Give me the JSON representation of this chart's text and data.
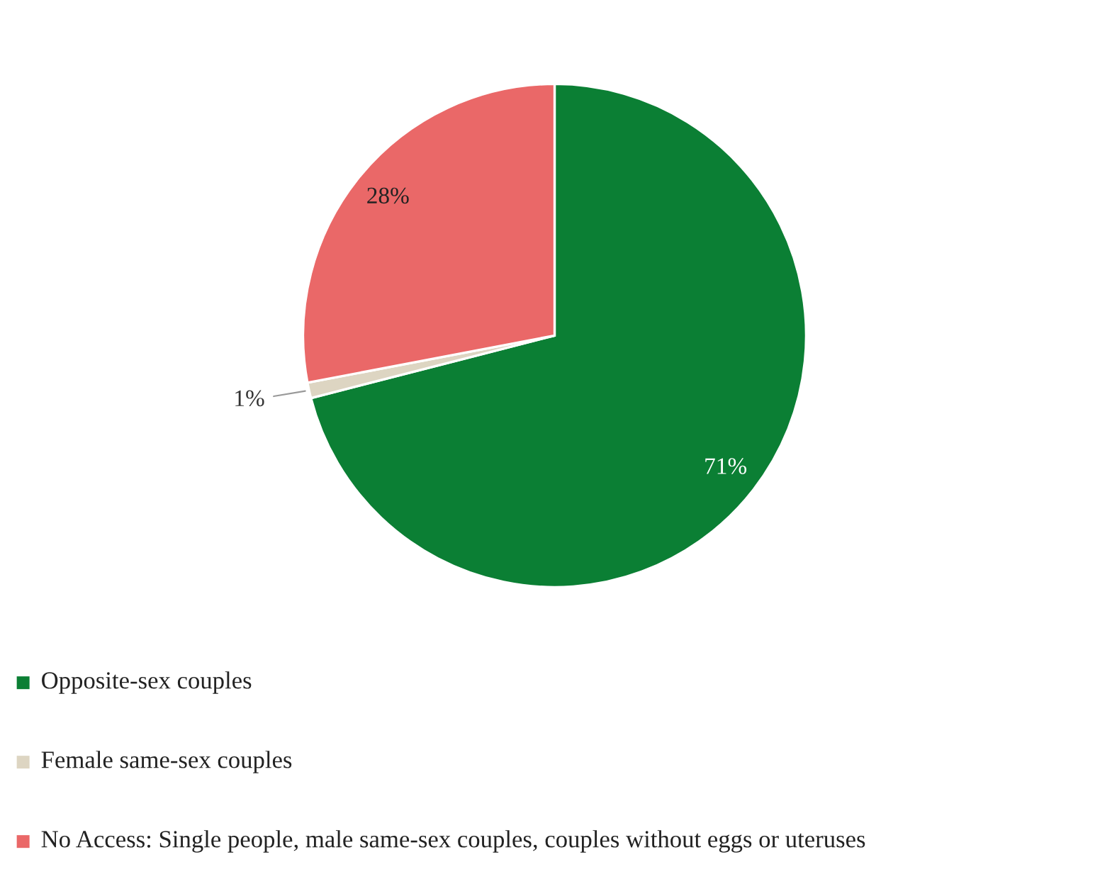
{
  "chart_data": {
    "type": "pie",
    "categories": [
      "Opposite-sex couples",
      "Female same-sex couples",
      "No Access: Single people, male same-sex couples, couples without eggs or uteruses"
    ],
    "values": [
      71,
      1,
      28
    ],
    "colors": [
      "#0b7f34",
      "#ddd5c2",
      "#ea6868"
    ],
    "value_labels": [
      "71%",
      "1%",
      "28%"
    ],
    "legend": "bottom left"
  }
}
